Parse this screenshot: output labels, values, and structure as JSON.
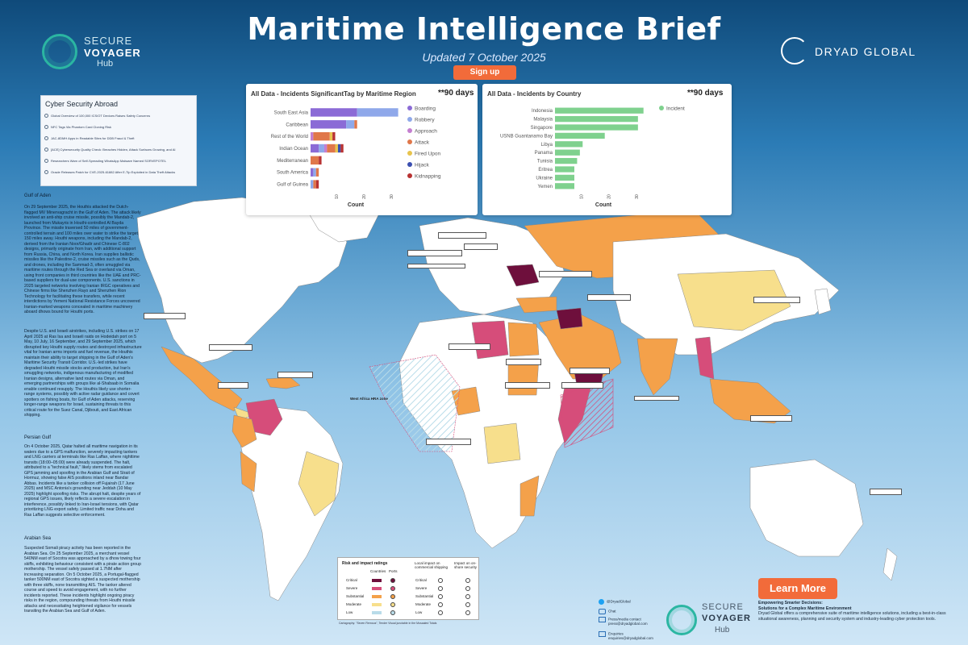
{
  "header": {
    "title": "Maritime Intelligence Brief",
    "updated": "Updated 7 October 2025",
    "signup_label": "Sign up"
  },
  "logos": {
    "secure_voyager": {
      "line1": "SECURE",
      "line2": "VOYAGER",
      "line3": "Hub"
    },
    "dryad": "DRYAD GLOBAL"
  },
  "colors": {
    "accent_orange": "#f26b3a",
    "critical": "#6e0f3c",
    "severe": "#d64d7a",
    "substantial": "#f4a14a",
    "moderate": "#f7df8c",
    "low": "#b9dce9",
    "bar_green": "#7fd18e"
  },
  "cyber_box": {
    "title": "Cyber Security Abroad",
    "items": [
      "Global Overview of 100,000 ICS/OT Devices Raises Safety Concerns",
      "NFC Tags Via Phantom Card Cloning Risk",
      "JAC-8DMH Apps in Readable Sites for DDB Fraud & Theft",
      "[ACE] Cybersecurity Quality Check: Breaches Hidden, Attack Surfaces Growing, and AI",
      "Researchers Warn of Self-Spreading WhatsApp Malware Named SORVEPOTEL",
      "Oracle Releases Patch for CVE-2025-61882 After E-Tip Exploited in Data Theft Attacks"
    ]
  },
  "region_chart": {
    "title": "All Data - Incidents SignificantTag by Maritime Region",
    "days": "**90 days",
    "xlabel": "Count",
    "x_ticks": [
      "10",
      "20",
      "30"
    ],
    "legend": [
      "Boarding",
      "Robbery",
      "Approach",
      "Attack",
      "Fired Upon",
      "Hijack",
      "Kidnapping"
    ]
  },
  "country_chart": {
    "title": "All Data - Incidents by Country",
    "days": "**90 days",
    "xlabel": "Count",
    "x_ticks": [
      "10",
      "20",
      "30"
    ],
    "legend": [
      "Incident"
    ]
  },
  "chart_data": [
    {
      "type": "bar",
      "orientation": "horizontal",
      "stacked": true,
      "title": "All Data - Incidents SignificantTag by Maritime Region",
      "xlabel": "Count",
      "categories": [
        "South East Asia",
        "Caribbean",
        "Rest of the World",
        "Indian Ocean",
        "Mediterranean",
        "South America",
        "Gulf of Guinea"
      ],
      "series": [
        {
          "name": "Boarding",
          "color": "#8b6bd6",
          "values": [
            17,
            13,
            0,
            3,
            0,
            1,
            0
          ]
        },
        {
          "name": "Robbery",
          "color": "#8fa8ea",
          "values": [
            15,
            3,
            0,
            2,
            0,
            1,
            1
          ]
        },
        {
          "name": "Approach",
          "color": "#c47fd0",
          "values": [
            0,
            0,
            1,
            1,
            0,
            0,
            0
          ]
        },
        {
          "name": "Attack",
          "color": "#e0774a",
          "values": [
            0,
            1,
            6,
            3,
            3,
            1,
            1
          ]
        },
        {
          "name": "Fired Upon",
          "color": "#e8c44d",
          "values": [
            0,
            0,
            1,
            1,
            0,
            0,
            0
          ]
        },
        {
          "name": "Hijack",
          "color": "#3b4fb0",
          "values": [
            0,
            0,
            0,
            1,
            0,
            0,
            0
          ]
        },
        {
          "name": "Kidnapping",
          "color": "#b83232",
          "values": [
            0,
            0,
            1,
            1,
            1,
            0,
            1
          ]
        }
      ],
      "xlim": [
        0,
        33
      ]
    },
    {
      "type": "bar",
      "orientation": "horizontal",
      "title": "All Data - Incidents by Country",
      "xlabel": "Count",
      "categories": [
        "Indonesia",
        "Malaysia",
        "Singapore",
        "USNB Guantanamo Bay",
        "Libya",
        "Panama",
        "Tunisia",
        "Eritrea",
        "Ukraine",
        "Yemen"
      ],
      "series": [
        {
          "name": "Incident",
          "color": "#7fd18e",
          "values": [
            32,
            30,
            30,
            18,
            10,
            9,
            8,
            7,
            7,
            7
          ]
        }
      ],
      "xlim": [
        0,
        35
      ]
    }
  ],
  "side": {
    "gulf_of_aden_heading": "Gulf of Aden",
    "gulf_of_aden_p1": "On 29 September 2025, the Houthis attacked the Dutch-flagged MV Minervagracht in the Gulf of Aden. The attack likely involved an anti-ship cruise missile, possibly the Mandab-2, launched from Mukayris in Houthi-controlled Al Bayda Province. The missile traversed 50 miles of government-controlled terrain and 100 miles over water to strike the target 150 miles away. Houthi weapons, including the Mandab-2, derived from the Iranian Noor/Ghadir and Chinese C-802 designs, primarily originate from Iran, with additional support from Russia, China, and North Korea. Iran supplies ballistic missiles like the Palestine-2, cruise missiles such as the Quds, and drones, including the Sammad-3, often smuggled via maritime routes through the Red Sea or overland via Oman, using front companies in third countries like the UAE and PRC-based suppliers for dual-use components. U.S. sanctions in 2025 targeted networks involving Iranian IRGC operatives and Chinese firms like Shenzhen Rayo and Shenzhen Rion Technology for facilitating these transfers, while recent interdictions by Yemeni National Resistance Forces uncovered Iranian-marked weapons concealed in maritime machinery aboard dhows bound for Houthi ports.",
    "gulf_of_aden_p2": "Despite U.S. and Israeli airstrikes, including U.S. strikes on 17 April 2025 at Ras Isa and Israeli raids on Hodeidah port on 5 May, 10 July, 16 September, and 29 September 2025, which disrupted key Houthi supply routes and destroyed infrastructure vital for Iranian arms imports and fuel revenue, the Houthis maintain their ability to target shipping in the Gulf of Aden's Maritime Security Transit Corridor. U.S.-led strikes have degraded Houthi missile stocks and production, but Iran's smuggling networks, indigenous manufacturing of modified Iranian designs, alternative land routes via Oman, and emerging partnerships with groups like al-Shabaab in Somalia enable continued resupply. The Houthis likely use shorter-range systems, possibly with active radar guidance and covert spotters on fishing boats, for Gulf of Aden attacks, reserving longer-range weapons for Israel, sustaining threats to this critical route for the Suez Canal, Djibouti, and East African shipping.",
    "persian_gulf_heading": "Persian Gulf",
    "persian_gulf_p": "On 4 October 2025, Qatar halted all maritime navigation in its waters due to a GPS malfunction, severely impacting tankers and LNG carriers at terminals like Ras Laffan, where nighttime transits (18:00–05:00) were already suspended. The halt, attributed to a \"technical fault,\" likely stems from escalated GPS jamming and spoofing in the Arabian Gulf and Strait of Hormuz, showing false AIS positions inland near Bandar Abbas. Incidents like a tanker collision off Fujairah (17 June 2025) and MSC Antonia's grounding near Jeddah (10 May 2025) highlight spoofing risks. The abrupt halt, despite years of regional GPS issues, likely reflects a severe escalation in interference, possibly linked to Iran-Israel tensions, with Qatar prioritizing LNG export safety. Limited traffic near Doha and Ras Laffan suggests selective enforcement.",
    "arabian_sea_heading": "Arabian Sea",
    "arabian_sea_p": "Suspected Somali piracy activity has been reported in the Arabian Sea. On 25 September 2025, a merchant vessel 540NM east of Socotra was approached by a dhow towing four skiffs, exhibiting behaviour consistent with a pirate action group mothership. The vessel safely passed at 1.7NM after increasing separation. On 5 October 2025, a Portugal-flagged tanker 500NM east of Socotra sighted a suspected mothership with three skiffs, none transmitting AIS. The tanker altered course and speed to avoid engagement, with no further incidents reported. These incidents highlight ongoing piracy risks in the region, compounding threats from Houthi missile attacks and necessitating heightened vigilance for vessels transiting the Arabian Sea and Gulf of Aden."
  },
  "map": {
    "hra_label": "West Africa HRA zone",
    "legend": {
      "title": "Risk and impact ratings",
      "col_countries": "Countries",
      "col_ports": "Ports",
      "col_local": "Local impact on commercial shipping",
      "col_onshore": "Impact on on-shore security",
      "levels": [
        "Critical",
        "Severe",
        "Substantial",
        "Moderate",
        "Low"
      ]
    },
    "cartography": "Cartography: \"Seven Remous\", Tender Visual junctable in the Mosaaled Totals"
  },
  "footer": {
    "learn_more": "Learn More",
    "tagline_title": "Empowering Smarter Decisions:",
    "tagline_sub": "Solutions for a Complex Maritime Environment",
    "tagline_body": "Dryad Global offers a comprehensive suite of maritime intelligence solutions, including a best-in-class situational awareness, planning and security system and industry-leading cyber protection tools.",
    "twitter": "@DryadGlobal",
    "chat": "Chat",
    "press_label": "Press/media contact",
    "press_email": "press@dryadglobal.com",
    "enquiries_label": "Enquiries",
    "enquiries_email": "enquiries@dryadglobal.com"
  }
}
